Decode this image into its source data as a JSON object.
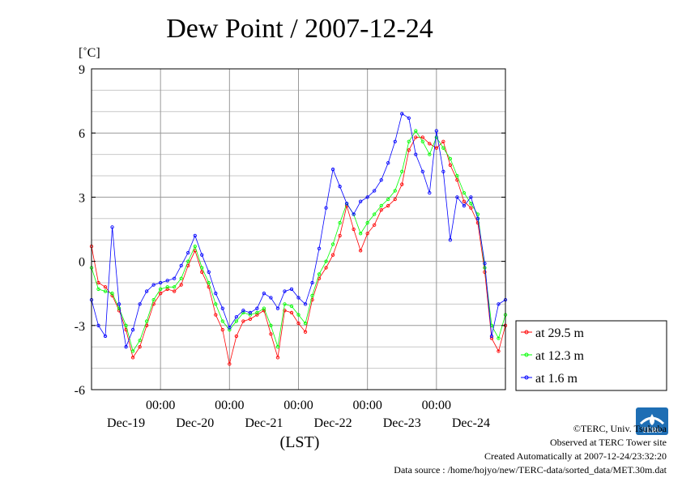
{
  "chart_data": {
    "type": "line",
    "title": "Dew Point / 2007-12-24",
    "ylabel": "[˚C]",
    "xlabel": "(LST)",
    "ylim": [
      -6,
      9
    ],
    "yticks": [
      -6,
      -3,
      0,
      3,
      6,
      9
    ],
    "xlim": [
      0,
      6
    ],
    "xticks": [
      1,
      2,
      3,
      4,
      5
    ],
    "xtick_time_labels": [
      "00:00",
      "00:00",
      "00:00",
      "00:00",
      "00:00"
    ],
    "xtick_date_labels": [
      "Dec-19",
      "Dec-20",
      "Dec-21",
      "Dec-22",
      "Dec-23",
      "Dec-24"
    ],
    "grid": true,
    "legend_position": "right",
    "series": [
      {
        "name": "at 29.5 m",
        "color": "#ff0000",
        "x": [
          0.0,
          0.1,
          0.2,
          0.3,
          0.4,
          0.5,
          0.6,
          0.7,
          0.8,
          0.9,
          1.0,
          1.1,
          1.2,
          1.3,
          1.4,
          1.5,
          1.6,
          1.7,
          1.8,
          1.9,
          2.0,
          2.1,
          2.2,
          2.3,
          2.4,
          2.5,
          2.6,
          2.7,
          2.8,
          2.9,
          3.0,
          3.1,
          3.2,
          3.3,
          3.4,
          3.5,
          3.6,
          3.7,
          3.8,
          3.9,
          4.0,
          4.1,
          4.2,
          4.3,
          4.4,
          4.5,
          4.6,
          4.7,
          4.8,
          4.9,
          5.0,
          5.1,
          5.2,
          5.3,
          5.4,
          5.5,
          5.6,
          5.7,
          5.8,
          5.9,
          6.0
        ],
        "y": [
          0.7,
          -1.0,
          -1.2,
          -1.6,
          -2.3,
          -3.2,
          -4.5,
          -4.0,
          -3.0,
          -2.0,
          -1.5,
          -1.3,
          -1.4,
          -1.1,
          -0.2,
          0.5,
          -0.5,
          -1.2,
          -2.5,
          -3.2,
          -4.8,
          -3.5,
          -2.8,
          -2.7,
          -2.5,
          -2.3,
          -3.4,
          -4.5,
          -2.3,
          -2.4,
          -2.9,
          -3.3,
          -1.8,
          -0.8,
          -0.3,
          0.3,
          1.2,
          2.6,
          1.5,
          0.5,
          1.3,
          1.7,
          2.4,
          2.6,
          2.9,
          3.6,
          5.2,
          5.8,
          5.8,
          5.5,
          5.3,
          5.6,
          4.5,
          3.8,
          2.8,
          2.5,
          1.8,
          -0.5,
          -3.6,
          -4.2,
          -3.0
        ]
      },
      {
        "name": "at 12.3 m",
        "color": "#00ff00",
        "x": [
          0.0,
          0.1,
          0.2,
          0.3,
          0.4,
          0.5,
          0.6,
          0.7,
          0.8,
          0.9,
          1.0,
          1.1,
          1.2,
          1.3,
          1.4,
          1.5,
          1.6,
          1.7,
          1.8,
          1.9,
          2.0,
          2.1,
          2.2,
          2.3,
          2.4,
          2.5,
          2.6,
          2.7,
          2.8,
          2.9,
          3.0,
          3.1,
          3.2,
          3.3,
          3.4,
          3.5,
          3.6,
          3.7,
          3.8,
          3.9,
          4.0,
          4.1,
          4.2,
          4.3,
          4.4,
          4.5,
          4.6,
          4.7,
          4.8,
          4.9,
          5.0,
          5.1,
          5.2,
          5.3,
          5.4,
          5.5,
          5.6,
          5.7,
          5.8,
          5.9,
          6.0
        ],
        "y": [
          -0.3,
          -1.3,
          -1.4,
          -1.5,
          -2.2,
          -3.0,
          -4.2,
          -3.7,
          -2.8,
          -1.8,
          -1.3,
          -1.2,
          -1.2,
          -0.8,
          0.0,
          0.7,
          -0.3,
          -1.0,
          -2.0,
          -2.8,
          -3.2,
          -2.8,
          -2.4,
          -2.5,
          -2.4,
          -2.2,
          -3.0,
          -4.0,
          -2.0,
          -2.1,
          -2.5,
          -2.9,
          -1.6,
          -0.6,
          0.0,
          0.8,
          1.8,
          2.7,
          2.2,
          1.3,
          1.8,
          2.2,
          2.6,
          2.9,
          3.3,
          4.2,
          5.6,
          6.1,
          5.6,
          5.0,
          5.8,
          5.3,
          4.8,
          4.0,
          3.2,
          2.7,
          2.2,
          -0.3,
          -3.0,
          -3.6,
          -2.5
        ]
      },
      {
        "name": "at 1.6 m",
        "color": "#0000ff",
        "x": [
          0.0,
          0.1,
          0.2,
          0.3,
          0.4,
          0.5,
          0.6,
          0.7,
          0.8,
          0.9,
          1.0,
          1.1,
          1.2,
          1.3,
          1.4,
          1.5,
          1.6,
          1.7,
          1.8,
          1.9,
          2.0,
          2.1,
          2.2,
          2.3,
          2.4,
          2.5,
          2.6,
          2.7,
          2.8,
          2.9,
          3.0,
          3.1,
          3.2,
          3.3,
          3.4,
          3.5,
          3.6,
          3.7,
          3.8,
          3.9,
          4.0,
          4.1,
          4.2,
          4.3,
          4.4,
          4.5,
          4.6,
          4.7,
          4.8,
          4.9,
          5.0,
          5.1,
          5.2,
          5.3,
          5.4,
          5.5,
          5.6,
          5.7,
          5.8,
          5.9,
          6.0
        ],
        "y": [
          -1.8,
          -3.0,
          -3.5,
          1.6,
          -2.0,
          -4.0,
          -3.2,
          -2.0,
          -1.4,
          -1.1,
          -1.0,
          -0.9,
          -0.8,
          -0.2,
          0.4,
          1.2,
          0.3,
          -0.5,
          -1.5,
          -2.2,
          -3.1,
          -2.6,
          -2.3,
          -2.4,
          -2.2,
          -1.5,
          -1.7,
          -2.2,
          -1.4,
          -1.3,
          -1.7,
          -2.0,
          -1.0,
          0.6,
          2.5,
          4.3,
          3.5,
          2.7,
          2.2,
          2.8,
          3.0,
          3.3,
          3.8,
          4.6,
          5.6,
          6.9,
          6.7,
          5.0,
          4.2,
          3.2,
          6.1,
          4.2,
          1.0,
          3.0,
          2.6,
          3.0,
          2.0,
          -0.1,
          -3.5,
          -2.0,
          -1.8
        ]
      }
    ]
  },
  "credits": {
    "copyright": "©TERC, Univ. Tsukuba",
    "observed": "Observed at TERC Tower site",
    "created": "Created Automatically at 2007-12-24/23:32:20",
    "source": "Data source : /home/hojyo/new/TERC-data/sorted_data/MET.30m.dat"
  },
  "logo": {
    "text": "TERC",
    "color": "#1e6eb4"
  }
}
